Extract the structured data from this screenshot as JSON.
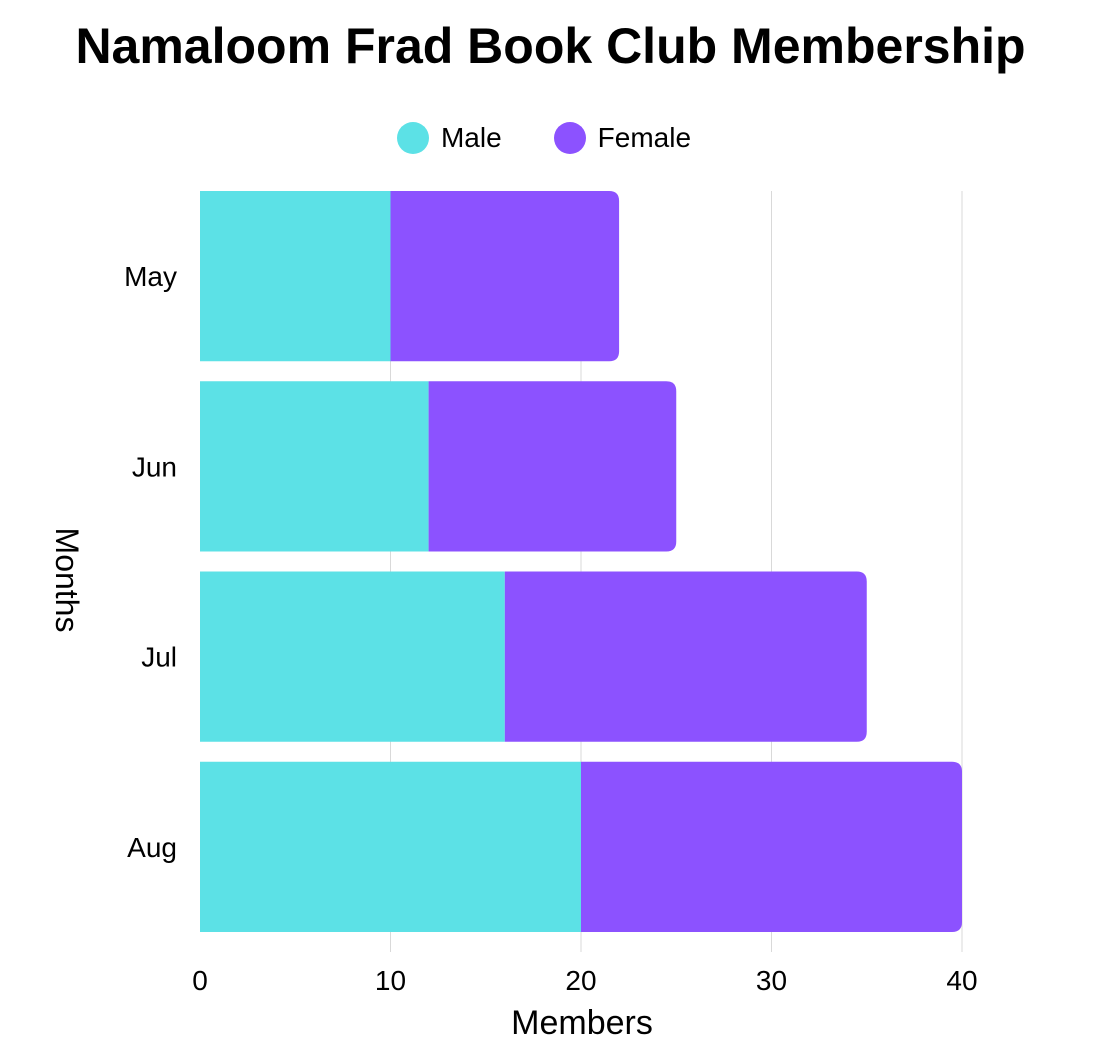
{
  "chart_data": {
    "type": "bar",
    "orientation": "horizontal",
    "stacked": true,
    "title": "Namaloom Frad Book Club Membership",
    "xlabel": "Members",
    "ylabel": "Months",
    "categories": [
      "May",
      "Jun",
      "Jul",
      "Aug"
    ],
    "series": [
      {
        "name": "Male",
        "color": "#5ce1e6",
        "values": [
          10,
          12,
          16,
          20
        ]
      },
      {
        "name": "Female",
        "color": "#8c52ff",
        "values": [
          12,
          13,
          19,
          20
        ]
      }
    ],
    "xlim": [
      0,
      40
    ],
    "xticks": [
      "0",
      "10",
      "20",
      "30",
      "40"
    ],
    "grid": true,
    "legend_position": "top-center"
  }
}
